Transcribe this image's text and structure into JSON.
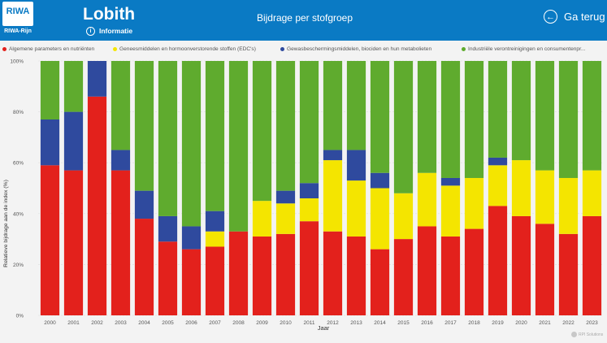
{
  "header": {
    "logo_text": "RIWA",
    "logo_sub": "RIWA-Rijn",
    "title": "Lobith",
    "info_label": "Informatie",
    "info_icon": "info-icon",
    "subtitle": "Bijdrage per stofgroep",
    "back_label": "Ga terug",
    "back_icon": "arrow-left-circle-icon",
    "color": "#0a7ac4"
  },
  "footer": {
    "brand": "RPI Solutions"
  },
  "chart_data": {
    "type": "bar",
    "stacked": true,
    "categories": [
      "2000",
      "2001",
      "2002",
      "2003",
      "2004",
      "2005",
      "2006",
      "2007",
      "2008",
      "2009",
      "2010",
      "2011",
      "2012",
      "2013",
      "2014",
      "2015",
      "2016",
      "2017",
      "2018",
      "2019",
      "2020",
      "2021",
      "2022",
      "2023"
    ],
    "series": [
      {
        "name": "Algemene parameters en nutriënten",
        "color": "#e3211c",
        "values": [
          59,
          57,
          86,
          57,
          38,
          29,
          26,
          27,
          33,
          31,
          32,
          37,
          33,
          31,
          26,
          30,
          35,
          31,
          34,
          43,
          39,
          36,
          32,
          39
        ]
      },
      {
        "name": "Geneesmiddelen en hormoonverstorende stoffen (EDC's)",
        "color": "#f4e500",
        "values": [
          0,
          0,
          0,
          0,
          0,
          0,
          0,
          6,
          0,
          14,
          12,
          9,
          28,
          22,
          24,
          18,
          21,
          20,
          20,
          16,
          22,
          21,
          22,
          18
        ]
      },
      {
        "name": "Gewasbeschermingsmiddelen, biociden en hun metabolieten",
        "color": "#2f4a9e",
        "values": [
          18,
          23,
          14,
          8,
          11,
          10,
          9,
          8,
          0,
          0,
          5,
          6,
          4,
          12,
          6,
          0,
          0,
          3,
          0,
          3,
          0,
          0,
          0,
          0
        ]
      },
      {
        "name": "Industriële verontreinigingen en consumentenpr...",
        "color": "#5fab2e",
        "values": [
          23,
          20,
          0,
          35,
          51,
          61,
          65,
          59,
          67,
          55,
          51,
          48,
          35,
          35,
          44,
          52,
          44,
          46,
          46,
          38,
          39,
          43,
          46,
          43
        ]
      }
    ],
    "xlabel": "Jaar",
    "ylabel": "Relatieve bijdrage aan de index (%)",
    "yticks": [
      "0%",
      "20%",
      "40%",
      "60%",
      "80%",
      "100%"
    ],
    "ylim": [
      0,
      100
    ],
    "legend_position": "top"
  }
}
